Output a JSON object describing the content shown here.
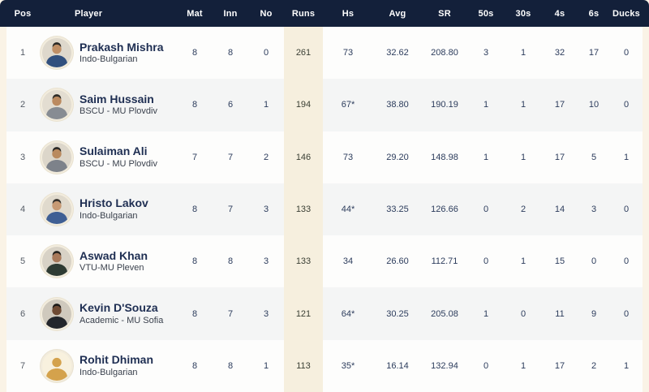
{
  "theme": {
    "header_bg": "#13203a",
    "header_text": "#ffffff",
    "page_bg": "#faf3e6",
    "row_odd_bg": "#fdfdfc",
    "row_even_bg": "#f4f5f5",
    "runs_column_bg": "#f6efde",
    "player_name_color": "#1e2e52",
    "stat_text_color": "#2c3c5c"
  },
  "table": {
    "columns": [
      {
        "key": "pos",
        "label": "Pos"
      },
      {
        "key": "player",
        "label": "Player"
      },
      {
        "key": "mat",
        "label": "Mat"
      },
      {
        "key": "inn",
        "label": "Inn"
      },
      {
        "key": "no",
        "label": "No"
      },
      {
        "key": "runs",
        "label": "Runs"
      },
      {
        "key": "hs",
        "label": "Hs"
      },
      {
        "key": "avg",
        "label": "Avg"
      },
      {
        "key": "sr",
        "label": "SR"
      },
      {
        "key": "fifties",
        "label": "50s"
      },
      {
        "key": "thirties",
        "label": "30s"
      },
      {
        "key": "fours",
        "label": "4s"
      },
      {
        "key": "sixes",
        "label": "6s"
      },
      {
        "key": "ducks",
        "label": "Ducks"
      }
    ],
    "rows": [
      {
        "pos": "1",
        "name": "Prakash Mishra",
        "team": "Indo-Bulgarian",
        "mat": "8",
        "inn": "8",
        "no": "0",
        "runs": "261",
        "hs": "73",
        "avg": "32.62",
        "sr": "208.80",
        "fifties": "3",
        "thirties": "1",
        "fours": "32",
        "sixes": "17",
        "ducks": "0",
        "avatar": {
          "type": "photo",
          "bg": "#ded8cc",
          "skin": "#bf8f66",
          "shirt": "#31507e",
          "hair": "#2b2a27"
        }
      },
      {
        "pos": "2",
        "name": "Saim Hussain",
        "team": "BSCU - MU Plovdiv",
        "mat": "8",
        "inn": "6",
        "no": "1",
        "runs": "194",
        "hs": "67*",
        "avg": "38.80",
        "sr": "190.19",
        "fifties": "1",
        "thirties": "1",
        "fours": "17",
        "sixes": "10",
        "ducks": "0",
        "avatar": {
          "type": "photo",
          "bg": "#e3ddd1",
          "skin": "#bb8a60",
          "shirt": "#878c93",
          "hair": "#2e2c28"
        }
      },
      {
        "pos": "3",
        "name": "Sulaiman Ali",
        "team": "BSCU - MU Plovdiv",
        "mat": "7",
        "inn": "7",
        "no": "2",
        "runs": "146",
        "hs": "73",
        "avg": "29.20",
        "sr": "148.98",
        "fifties": "1",
        "thirties": "1",
        "fours": "17",
        "sixes": "5",
        "ducks": "1",
        "avatar": {
          "type": "photo",
          "bg": "#dcd6ca",
          "skin": "#b98a5f",
          "shirt": "#7d828a",
          "hair": "#2b2926"
        }
      },
      {
        "pos": "4",
        "name": "Hristo Lakov",
        "team": "Indo-Bulgarian",
        "mat": "8",
        "inn": "7",
        "no": "3",
        "runs": "133",
        "hs": "44*",
        "avg": "33.25",
        "sr": "126.66",
        "fifties": "0",
        "thirties": "2",
        "fours": "14",
        "sixes": "3",
        "ducks": "0",
        "avatar": {
          "type": "photo",
          "bg": "#e0dacd",
          "skin": "#c79a74",
          "shirt": "#3f5f94",
          "hair": "#36322d"
        }
      },
      {
        "pos": "5",
        "name": "Aswad Khan",
        "team": "VTU-MU Pleven",
        "mat": "8",
        "inn": "8",
        "no": "3",
        "runs": "133",
        "hs": "34",
        "avg": "26.60",
        "sr": "112.71",
        "fifties": "0",
        "thirties": "1",
        "fours": "15",
        "sixes": "0",
        "ducks": "0",
        "avatar": {
          "type": "photo",
          "bg": "#d8d2c6",
          "skin": "#a8795a",
          "shirt": "#2e3b33",
          "hair": "#262420"
        }
      },
      {
        "pos": "6",
        "name": "Kevin D'Souza",
        "team": "Academic - MU Sofia",
        "mat": "8",
        "inn": "7",
        "no": "3",
        "runs": "121",
        "hs": "64*",
        "avg": "30.25",
        "sr": "205.08",
        "fifties": "1",
        "thirties": "0",
        "fours": "11",
        "sixes": "9",
        "ducks": "0",
        "avatar": {
          "type": "photo",
          "bg": "#cfc9bd",
          "skin": "#6e4a33",
          "shirt": "#23262b",
          "hair": "#1c1a18"
        }
      },
      {
        "pos": "7",
        "name": "Rohit Dhiman",
        "team": "Indo-Bulgarian",
        "mat": "8",
        "inn": "8",
        "no": "1",
        "runs": "113",
        "hs": "35*",
        "avg": "16.14",
        "sr": "132.94",
        "fifties": "0",
        "thirties": "1",
        "fours": "17",
        "sixes": "2",
        "ducks": "1",
        "avatar": {
          "type": "placeholder",
          "bg": "#f8f1de",
          "silhouette": "#d4a24c"
        }
      }
    ]
  }
}
